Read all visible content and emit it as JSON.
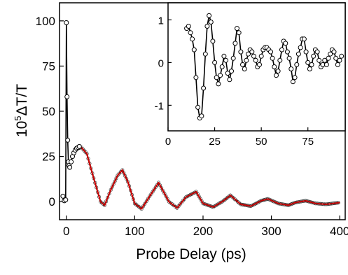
{
  "chart_data": [
    {
      "id": "main",
      "type": "scatter",
      "title": "",
      "xlabel": "Probe  Delay  (ps)",
      "ylabel_prefix": "10",
      "ylabel_sup": "5",
      "ylabel_rest": "ΔT/T",
      "xlim": [
        -10,
        408
      ],
      "ylim": [
        -10,
        110
      ],
      "xticks": [
        0,
        100,
        200,
        300,
        400
      ],
      "yticks": [
        0,
        25,
        50,
        75,
        100
      ],
      "series": [
        {
          "style": "open circles with black line",
          "color": "#000000",
          "x": [
            -5,
            -3,
            -1,
            0,
            1,
            2,
            3,
            4,
            5,
            7,
            9,
            11,
            13,
            15,
            17,
            19
          ],
          "y": [
            3,
            0.5,
            1,
            99,
            58,
            34,
            22,
            20,
            19,
            22,
            25,
            27,
            28.5,
            29.5,
            30,
            30.5
          ]
        }
      ],
      "fit": {
        "style": "red line",
        "color": "#cc0000",
        "x": [
          15,
          22,
          30,
          40,
          50,
          56,
          65,
          75,
          82,
          90,
          100,
          110,
          122,
          135,
          150,
          162,
          175,
          190,
          200,
          215,
          230,
          240,
          255,
          270,
          285,
          295,
          310,
          325,
          335,
          350,
          365,
          380,
          390,
          400
        ],
        "y": [
          29,
          30,
          26.5,
          13,
          0,
          -2,
          6.5,
          14.5,
          17.5,
          11,
          -1,
          -4,
          3,
          10.5,
          0,
          -3.5,
          2.5,
          5.5,
          -1,
          -3,
          0.5,
          3.5,
          -1.5,
          -2.5,
          0.5,
          1.5,
          -1,
          -2,
          -0.5,
          0.5,
          -1,
          -1.5,
          -1,
          -0.5
        ]
      }
    },
    {
      "id": "inset",
      "type": "line",
      "title": "",
      "xlabel": "",
      "ylabel": "",
      "xlim": [
        0,
        95
      ],
      "ylim": [
        -1.6,
        1.4
      ],
      "xticks": [
        0,
        25,
        50,
        75
      ],
      "yticks": [
        -1,
        0,
        1
      ],
      "series": [
        {
          "style": "open circles with black line",
          "color": "#000000",
          "x": [
            10,
            11,
            12,
            13,
            14,
            15,
            16,
            17,
            18,
            19,
            20,
            21,
            22,
            23,
            24,
            25,
            26,
            27,
            28,
            29,
            30,
            31,
            32,
            33,
            34,
            35,
            36,
            37,
            38,
            39,
            40,
            41,
            42,
            43,
            44,
            45,
            46,
            47,
            48,
            49,
            50,
            51,
            52,
            53,
            54,
            55,
            56,
            57,
            58,
            59,
            60,
            61,
            62,
            63,
            64,
            65,
            66,
            67,
            68,
            69,
            70,
            71,
            72,
            73,
            74,
            75,
            76,
            77,
            78,
            79,
            80,
            81,
            82,
            83,
            84,
            85,
            86,
            87,
            88,
            89,
            90,
            91,
            92,
            93
          ],
          "y": [
            0.8,
            0.85,
            0.7,
            0.55,
            0.3,
            -0.35,
            -1.05,
            -1.3,
            -1.25,
            -0.6,
            0.2,
            0.85,
            1.1,
            0.95,
            0.5,
            0.0,
            -0.35,
            -0.5,
            -0.3,
            -0.1,
            0.15,
            0.05,
            -0.25,
            -0.4,
            -0.2,
            0.1,
            0.45,
            0.8,
            0.7,
            0.25,
            -0.05,
            -0.15,
            0.05,
            0.2,
            0.3,
            0.25,
            0.15,
            0.05,
            -0.1,
            -0.05,
            0.15,
            0.3,
            0.35,
            0.35,
            0.3,
            0.25,
            0.1,
            -0.1,
            -0.3,
            -0.2,
            0.05,
            0.3,
            0.5,
            0.45,
            0.25,
            0.1,
            -0.15,
            -0.45,
            -0.35,
            -0.05,
            0.2,
            0.35,
            0.55,
            0.55,
            0.25,
            0.0,
            -0.15,
            -0.05,
            0.15,
            0.3,
            0.25,
            0.05,
            -0.1,
            -0.05,
            0.05,
            -0.05,
            0.1,
            0.2,
            0.3,
            0.25,
            0.1,
            -0.05,
            0.05,
            0.15
          ]
        }
      ]
    }
  ]
}
